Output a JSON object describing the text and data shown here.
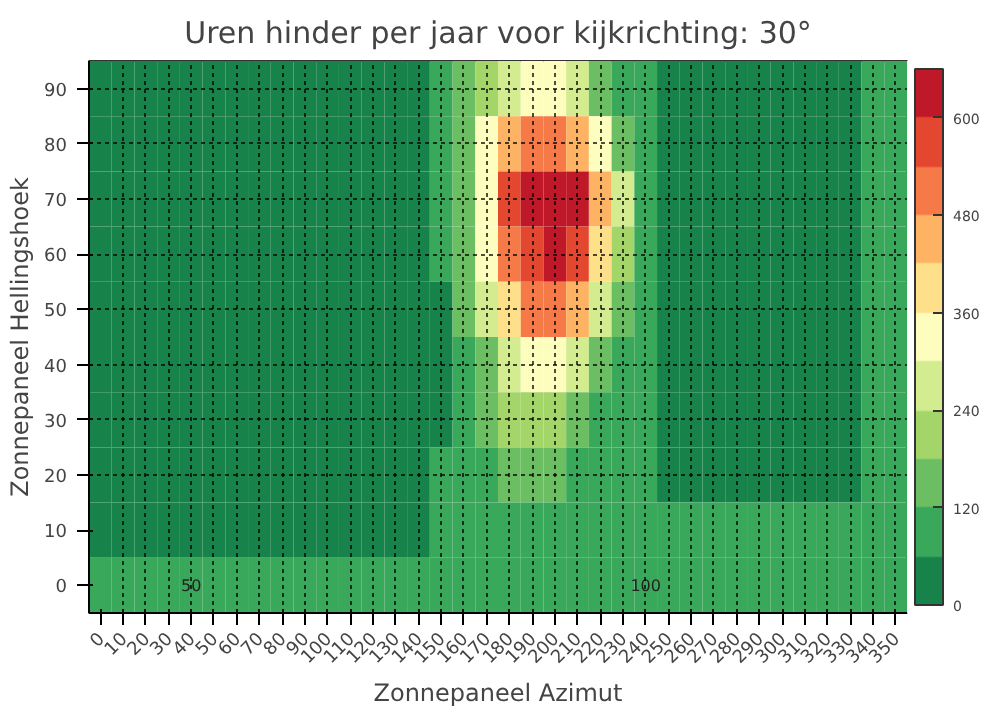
{
  "chart_data": {
    "type": "heatmap",
    "title": "Uren hinder per jaar voor kijkrichting: 30°",
    "xlabel": "Zonnepaneel Azimut",
    "ylabel": "Zonnepaneel Hellingshoek",
    "categories": [
      "0",
      "10",
      "20",
      "30",
      "40",
      "50",
      "60",
      "70",
      "80",
      "90",
      "100",
      "110",
      "120",
      "130",
      "140",
      "150",
      "160",
      "170",
      "180",
      "190",
      "200",
      "210",
      "220",
      "230",
      "240",
      "250",
      "260",
      "270",
      "280",
      "290",
      "300",
      "310",
      "320",
      "330",
      "340",
      "350"
    ],
    "y_categories": [
      "90",
      "80",
      "70",
      "60",
      "50",
      "40",
      "30",
      "20",
      "10",
      "0"
    ],
    "cells": [
      [
        30,
        30,
        30,
        30,
        30,
        30,
        30,
        30,
        30,
        30,
        30,
        30,
        30,
        30,
        30,
        60,
        120,
        200,
        260,
        300,
        300,
        260,
        180,
        110,
        70,
        40,
        40,
        40,
        40,
        40,
        40,
        40,
        40,
        40,
        70,
        70
      ],
      [
        30,
        30,
        30,
        30,
        30,
        30,
        30,
        30,
        30,
        30,
        30,
        30,
        30,
        30,
        30,
        80,
        160,
        300,
        420,
        480,
        490,
        430,
        320,
        180,
        80,
        40,
        40,
        40,
        40,
        40,
        40,
        40,
        40,
        40,
        70,
        70
      ],
      [
        30,
        30,
        30,
        30,
        30,
        30,
        30,
        30,
        30,
        30,
        30,
        30,
        30,
        30,
        30,
        60,
        180,
        350,
        560,
        640,
        650,
        600,
        450,
        250,
        100,
        40,
        40,
        40,
        40,
        40,
        40,
        40,
        40,
        40,
        70,
        70
      ],
      [
        30,
        30,
        30,
        30,
        30,
        30,
        30,
        30,
        30,
        30,
        30,
        30,
        30,
        30,
        30,
        60,
        150,
        300,
        500,
        590,
        600,
        540,
        380,
        200,
        80,
        40,
        40,
        40,
        40,
        40,
        40,
        40,
        40,
        40,
        70,
        70
      ],
      [
        30,
        30,
        30,
        30,
        30,
        30,
        30,
        30,
        30,
        30,
        30,
        30,
        30,
        30,
        30,
        50,
        120,
        250,
        400,
        480,
        480,
        420,
        280,
        150,
        70,
        40,
        40,
        40,
        40,
        40,
        40,
        40,
        40,
        40,
        70,
        70
      ],
      [
        30,
        30,
        30,
        30,
        30,
        30,
        30,
        30,
        30,
        30,
        30,
        30,
        30,
        30,
        30,
        50,
        90,
        180,
        290,
        340,
        330,
        260,
        160,
        90,
        70,
        40,
        40,
        40,
        40,
        40,
        40,
        40,
        40,
        40,
        70,
        70
      ],
      [
        30,
        30,
        30,
        30,
        30,
        30,
        30,
        30,
        30,
        30,
        30,
        30,
        30,
        30,
        30,
        50,
        80,
        150,
        210,
        230,
        220,
        170,
        110,
        80,
        70,
        40,
        40,
        40,
        40,
        40,
        40,
        40,
        40,
        40,
        70,
        70
      ],
      [
        30,
        30,
        30,
        30,
        30,
        30,
        30,
        30,
        30,
        30,
        30,
        30,
        30,
        30,
        30,
        60,
        70,
        100,
        130,
        140,
        130,
        110,
        80,
        70,
        70,
        40,
        40,
        40,
        40,
        40,
        40,
        40,
        40,
        40,
        70,
        70
      ],
      [
        40,
        40,
        40,
        40,
        40,
        40,
        40,
        40,
        40,
        40,
        40,
        40,
        40,
        40,
        40,
        80,
        80,
        80,
        80,
        80,
        80,
        80,
        80,
        80,
        80,
        70,
        70,
        70,
        70,
        70,
        70,
        70,
        70,
        70,
        70,
        70
      ],
      [
        80,
        80,
        80,
        80,
        80,
        80,
        80,
        80,
        80,
        80,
        80,
        80,
        80,
        80,
        80,
        80,
        80,
        80,
        80,
        80,
        80,
        80,
        80,
        80,
        80,
        80,
        80,
        80,
        80,
        80,
        80,
        80,
        80,
        80,
        80,
        80
      ]
    ],
    "colors": [
      "#17834a",
      "#3aa85a",
      "#6cbe62",
      "#a3d569",
      "#d2ec8f",
      "#fdfebd",
      "#fee08b",
      "#fdb363",
      "#f67a48",
      "#e3472f",
      "#bf1829"
    ],
    "clim": [
      0,
      660
    ],
    "cticks": [
      0,
      120,
      240,
      360,
      480,
      600
    ],
    "grid": true,
    "annotations": [
      "50",
      "100"
    ]
  }
}
